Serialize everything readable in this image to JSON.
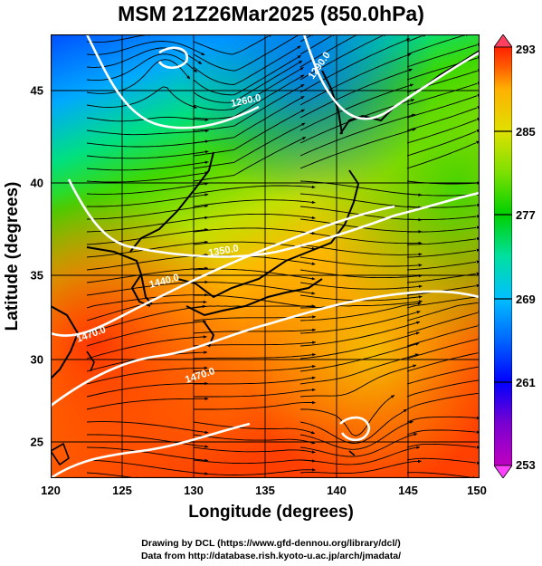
{
  "title": "MSM 21Z26Mar2025 (850.0hPa)",
  "map": {
    "projection": "equirectangular",
    "lon_range": [
      120,
      150
    ],
    "lat_range": [
      22.4,
      47.6
    ],
    "field": "temperature (K) shaded, streamlines, white isohypses",
    "x_ticks": [
      "120",
      "125",
      "130",
      "135",
      "140",
      "145",
      "150"
    ],
    "y_ticks": [
      "25",
      "30",
      "35",
      "40",
      "45"
    ],
    "xlabel": "Longitude (degrees)",
    "ylabel": "Latitude  (degrees)",
    "contour_labels": [
      "1260.0",
      "1290.0",
      "1350.0",
      "1440.0",
      "1470.0",
      "1470.0"
    ]
  },
  "colorbar": {
    "range": [
      253,
      293
    ],
    "ticks": [
      "293",
      "285",
      "277",
      "269",
      "261",
      "253"
    ],
    "stops": [
      "#c000c0",
      "#7a00d0",
      "#0000ff",
      "#0066ff",
      "#00c0ff",
      "#00e0a0",
      "#00d000",
      "#7ce000",
      "#e0e000",
      "#ffb000",
      "#ff6000",
      "#ff2000"
    ]
  },
  "credits": {
    "line1": "Drawing by DCL (https://www.gfd-dennou.org/library/dcl/)",
    "line2": "Data from http://database.rish.kyoto-u.ac.jp/arch/jmadata/"
  }
}
